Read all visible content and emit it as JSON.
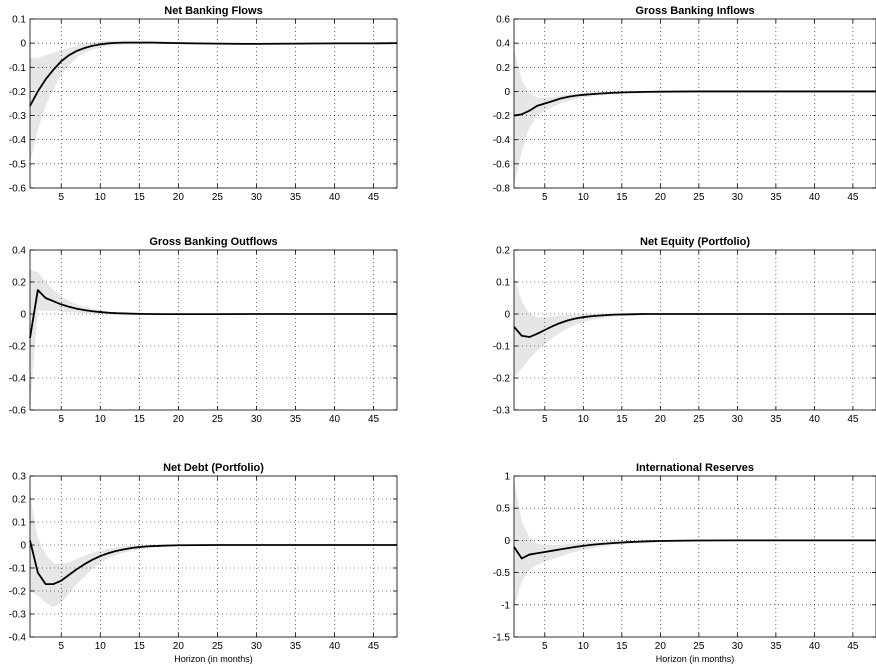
{
  "colors": {
    "line": "#000000",
    "band": "#e6e6e6",
    "grid": "#000000",
    "axis": "#000000"
  },
  "chart_data": [
    {
      "type": "line",
      "title": "Net Banking Flows",
      "xlabel": "",
      "xlim": [
        1,
        48
      ],
      "ylim": [
        -0.6,
        0.1
      ],
      "xticks": [
        5,
        10,
        15,
        20,
        25,
        30,
        35,
        40,
        45
      ],
      "xtick_labels": [
        "5",
        "10",
        "15",
        "20",
        "25",
        "30",
        "35",
        "40",
        "45"
      ],
      "yticks": [
        -0.6,
        -0.5,
        -0.4,
        -0.3,
        -0.2,
        -0.1,
        0,
        0.1
      ],
      "ytick_labels": [
        "-0.6",
        "-0.5",
        "-0.4",
        "-0.3",
        "-0.2",
        "-0.1",
        "0",
        "0.1"
      ],
      "grid": true,
      "x": [
        1,
        2,
        3,
        4,
        5,
        6,
        7,
        8,
        9,
        10,
        11,
        12,
        13,
        14,
        15,
        16,
        17,
        18,
        20,
        22,
        25,
        28,
        30,
        35,
        40,
        45,
        48
      ],
      "y": [
        -0.26,
        -0.2,
        -0.15,
        -0.11,
        -0.075,
        -0.05,
        -0.032,
        -0.02,
        -0.011,
        -0.005,
        -0.001,
        0.001,
        0.002,
        0.002,
        0.002,
        0.002,
        0.002,
        0.001,
        0.0,
        -0.001,
        -0.002,
        -0.003,
        -0.003,
        -0.002,
        -0.001,
        -0.001,
        0.0
      ],
      "band_upper": [
        -0.06,
        -0.06,
        -0.05,
        -0.04,
        -0.03,
        -0.02,
        -0.01,
        0.0,
        0.005,
        0.008,
        0.01,
        0.01,
        0.01,
        0.01,
        0.01,
        0.01,
        0.009,
        0.008,
        0.006,
        0.004,
        0.002,
        0.001,
        0.0,
        0.0,
        0.0,
        0.0,
        0.0
      ],
      "band_lower": [
        -0.5,
        -0.36,
        -0.26,
        -0.19,
        -0.13,
        -0.09,
        -0.06,
        -0.04,
        -0.027,
        -0.018,
        -0.012,
        -0.008,
        -0.006,
        -0.005,
        -0.004,
        -0.004,
        -0.004,
        -0.004,
        -0.004,
        -0.005,
        -0.006,
        -0.006,
        -0.006,
        -0.005,
        -0.003,
        -0.002,
        -0.001
      ]
    },
    {
      "type": "line",
      "title": "Gross Banking Inflows",
      "xlabel": "",
      "xlim": [
        1,
        48
      ],
      "ylim": [
        -0.8,
        0.6
      ],
      "xticks": [
        5,
        10,
        15,
        20,
        25,
        30,
        35,
        40,
        45
      ],
      "xtick_labels": [
        "5",
        "10",
        "15",
        "20",
        "25",
        "30",
        "35",
        "40",
        "45"
      ],
      "yticks": [
        -0.8,
        -0.6,
        -0.4,
        -0.2,
        0,
        0.2,
        0.4,
        0.6
      ],
      "ytick_labels": [
        "-0.8",
        "-0.6",
        "-0.4",
        "-0.2",
        "0",
        "0.2",
        "0.4",
        "0.6"
      ],
      "grid": true,
      "x": [
        1,
        2,
        3,
        4,
        5,
        6,
        7,
        8,
        9,
        10,
        12,
        14,
        16,
        18,
        20,
        22,
        25,
        30,
        35,
        40,
        45,
        48
      ],
      "y": [
        -0.2,
        -0.19,
        -0.16,
        -0.12,
        -0.1,
        -0.08,
        -0.06,
        -0.045,
        -0.035,
        -0.028,
        -0.018,
        -0.011,
        -0.007,
        -0.004,
        -0.002,
        -0.001,
        0.0,
        0.0,
        0.0,
        0.0,
        0.0,
        0.0
      ],
      "band_upper": [
        0.35,
        0.1,
        -0.02,
        -0.05,
        -0.05,
        -0.045,
        -0.035,
        -0.025,
        -0.018,
        -0.012,
        -0.006,
        -0.002,
        0.0,
        0.0,
        0.0,
        0.0,
        0.0,
        0.0,
        0.0,
        0.0,
        0.0,
        0.0
      ],
      "band_lower": [
        -0.78,
        -0.5,
        -0.3,
        -0.2,
        -0.16,
        -0.13,
        -0.1,
        -0.08,
        -0.065,
        -0.05,
        -0.035,
        -0.023,
        -0.015,
        -0.01,
        -0.006,
        -0.004,
        -0.002,
        -0.001,
        0.0,
        0.0,
        0.0,
        0.0
      ]
    },
    {
      "type": "line",
      "title": "Gross Banking Outflows",
      "xlabel": "",
      "xlim": [
        1,
        48
      ],
      "ylim": [
        -0.6,
        0.4
      ],
      "xticks": [
        5,
        10,
        15,
        20,
        25,
        30,
        35,
        40,
        45
      ],
      "xtick_labels": [
        "5",
        "10",
        "15",
        "20",
        "25",
        "30",
        "35",
        "40",
        "45"
      ],
      "yticks": [
        -0.6,
        -0.4,
        -0.2,
        0,
        0.2,
        0.4
      ],
      "ytick_labels": [
        "-0.6",
        "-0.4",
        "-0.2",
        "0",
        "0.2",
        "0.4"
      ],
      "grid": true,
      "x": [
        1,
        2,
        3,
        4,
        5,
        6,
        7,
        8,
        9,
        10,
        11,
        12,
        14,
        16,
        18,
        20,
        25,
        30,
        35,
        40,
        45,
        48
      ],
      "y": [
        -0.15,
        0.15,
        0.1,
        0.08,
        0.06,
        0.045,
        0.033,
        0.024,
        0.017,
        0.012,
        0.008,
        0.005,
        0.002,
        0.0,
        -0.001,
        -0.001,
        -0.001,
        0.0,
        0.0,
        0.0,
        0.0,
        0.0
      ],
      "band_upper": [
        0.28,
        0.26,
        0.2,
        0.15,
        0.11,
        0.08,
        0.06,
        0.045,
        0.033,
        0.024,
        0.017,
        0.012,
        0.006,
        0.003,
        0.001,
        0.0,
        0.0,
        0.0,
        0.0,
        0.0,
        0.0,
        0.0
      ],
      "band_lower": [
        -0.58,
        0.02,
        0.02,
        0.02,
        0.015,
        0.012,
        0.008,
        0.005,
        0.003,
        0.001,
        0.0,
        -0.001,
        -0.003,
        -0.004,
        -0.005,
        -0.005,
        -0.004,
        -0.003,
        -0.002,
        -0.001,
        -0.001,
        0.0
      ]
    },
    {
      "type": "line",
      "title": "Net Equity (Portfolio)",
      "xlabel": "",
      "xlim": [
        1,
        48
      ],
      "ylim": [
        -0.3,
        0.2
      ],
      "xticks": [
        5,
        10,
        15,
        20,
        25,
        30,
        35,
        40,
        45
      ],
      "xtick_labels": [
        "5",
        "10",
        "15",
        "20",
        "25",
        "30",
        "35",
        "40",
        "45"
      ],
      "yticks": [
        -0.3,
        -0.2,
        -0.1,
        0,
        0.1,
        0.2
      ],
      "ytick_labels": [
        "-0.3",
        "-0.2",
        "-0.1",
        "0",
        "0.1",
        "0.2"
      ],
      "grid": true,
      "x": [
        1,
        2,
        3,
        4,
        5,
        6,
        7,
        8,
        9,
        10,
        11,
        12,
        14,
        16,
        18,
        20,
        25,
        30,
        35,
        40,
        45,
        48
      ],
      "y": [
        -0.04,
        -0.068,
        -0.072,
        -0.062,
        -0.05,
        -0.038,
        -0.028,
        -0.02,
        -0.014,
        -0.01,
        -0.007,
        -0.005,
        -0.002,
        -0.001,
        0.0,
        0.0,
        0.0,
        0.0,
        0.0,
        0.0,
        0.0,
        0.0
      ],
      "band_upper": [
        0.12,
        0.04,
        0.0,
        -0.01,
        -0.01,
        -0.008,
        -0.005,
        -0.003,
        -0.002,
        -0.001,
        0.0,
        0.0,
        0.0,
        0.0,
        0.0,
        0.0,
        0.0,
        0.0,
        0.0,
        0.0,
        0.0,
        0.0
      ],
      "band_lower": [
        -0.2,
        -0.17,
        -0.14,
        -0.115,
        -0.095,
        -0.075,
        -0.058,
        -0.045,
        -0.034,
        -0.025,
        -0.019,
        -0.014,
        -0.008,
        -0.005,
        -0.003,
        -0.002,
        -0.001,
        0.0,
        0.0,
        0.0,
        0.0,
        0.0
      ]
    },
    {
      "type": "line",
      "title": "Net Debt (Portfolio)",
      "xlabel": "Horizon (in months)",
      "xlim": [
        1,
        48
      ],
      "ylim": [
        -0.4,
        0.3
      ],
      "xticks": [
        5,
        10,
        15,
        20,
        25,
        30,
        35,
        40,
        45
      ],
      "xtick_labels": [
        "5",
        "10",
        "15",
        "20",
        "25",
        "30",
        "35",
        "40",
        "45"
      ],
      "yticks": [
        -0.4,
        -0.3,
        -0.2,
        -0.1,
        0,
        0.1,
        0.2,
        0.3
      ],
      "ytick_labels": [
        "-0.4",
        "-0.3",
        "-0.2",
        "-0.1",
        "0",
        "0.1",
        "0.2",
        "0.3"
      ],
      "grid": true,
      "x": [
        1,
        2,
        3,
        4,
        5,
        6,
        7,
        8,
        9,
        10,
        11,
        12,
        13,
        14,
        15,
        16,
        18,
        20,
        25,
        30,
        35,
        40,
        45,
        48
      ],
      "y": [
        0.02,
        -0.12,
        -0.17,
        -0.17,
        -0.155,
        -0.13,
        -0.105,
        -0.083,
        -0.064,
        -0.048,
        -0.036,
        -0.026,
        -0.019,
        -0.013,
        -0.009,
        -0.006,
        -0.003,
        -0.001,
        0.0,
        0.0,
        0.0,
        0.0,
        0.0,
        0.0
      ],
      "band_upper": [
        0.22,
        0.03,
        -0.04,
        -0.08,
        -0.085,
        -0.075,
        -0.06,
        -0.046,
        -0.034,
        -0.024,
        -0.017,
        -0.011,
        -0.007,
        -0.004,
        -0.002,
        -0.001,
        0.0,
        0.0,
        0.0,
        0.0,
        0.0,
        0.0,
        0.0,
        0.0
      ],
      "band_lower": [
        -0.2,
        -0.22,
        -0.25,
        -0.27,
        -0.25,
        -0.21,
        -0.17,
        -0.135,
        -0.105,
        -0.08,
        -0.06,
        -0.045,
        -0.034,
        -0.025,
        -0.019,
        -0.014,
        -0.008,
        -0.005,
        -0.002,
        -0.001,
        0.0,
        0.0,
        0.0,
        0.0
      ]
    },
    {
      "type": "line",
      "title": "International Reserves",
      "xlabel": "Horizon (in months)",
      "xlim": [
        1,
        48
      ],
      "ylim": [
        -1.5,
        1
      ],
      "xticks": [
        5,
        10,
        15,
        20,
        25,
        30,
        35,
        40,
        45
      ],
      "xtick_labels": [
        "5",
        "10",
        "15",
        "20",
        "25",
        "30",
        "35",
        "40",
        "45"
      ],
      "yticks": [
        -1.5,
        -1,
        -0.5,
        0,
        0.5,
        1
      ],
      "ytick_labels": [
        "-1.5",
        "-1",
        "-0.5",
        "0",
        "0.5",
        "1"
      ],
      "grid": true,
      "x": [
        1,
        2,
        3,
        4,
        5,
        6,
        7,
        8,
        9,
        10,
        11,
        12,
        14,
        16,
        18,
        20,
        22,
        25,
        30,
        35,
        40,
        45,
        48
      ],
      "y": [
        -0.1,
        -0.28,
        -0.22,
        -0.2,
        -0.18,
        -0.16,
        -0.14,
        -0.12,
        -0.1,
        -0.085,
        -0.07,
        -0.058,
        -0.04,
        -0.026,
        -0.016,
        -0.009,
        -0.005,
        -0.002,
        0.0,
        0.0,
        0.0,
        0.0,
        0.0
      ],
      "band_upper": [
        0.95,
        0.3,
        0.05,
        -0.05,
        -0.07,
        -0.07,
        -0.065,
        -0.055,
        -0.045,
        -0.036,
        -0.028,
        -0.021,
        -0.011,
        -0.005,
        -0.002,
        0.0,
        0.0,
        0.0,
        0.0,
        0.0,
        0.0,
        0.0,
        0.0
      ],
      "band_lower": [
        -1.05,
        -0.65,
        -0.45,
        -0.38,
        -0.33,
        -0.29,
        -0.25,
        -0.21,
        -0.18,
        -0.15,
        -0.125,
        -0.1,
        -0.07,
        -0.048,
        -0.032,
        -0.021,
        -0.014,
        -0.007,
        -0.002,
        0.0,
        0.0,
        0.0,
        0.0
      ]
    }
  ]
}
